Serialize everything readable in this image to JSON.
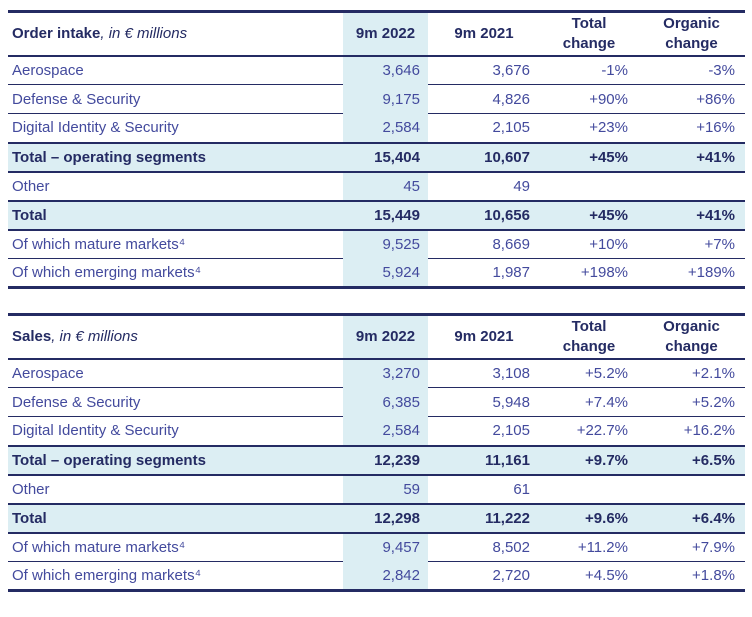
{
  "colors": {
    "navy": "#242b63",
    "text": "#434a9d",
    "highlight": "#dceef3",
    "page_bg": "#ffffff"
  },
  "tables": [
    {
      "title_bold": "Order intake",
      "title_qualifier": ", in € millions",
      "columns": [
        "9m 2022",
        "9m 2021",
        "Total\nchange",
        "Organic\nchange"
      ],
      "rows": [
        {
          "label": "Aerospace",
          "values": [
            "3,646",
            "3,676",
            "-1%",
            "-3%"
          ]
        },
        {
          "label": "Defense & Security",
          "values": [
            "9,175",
            "4,826",
            "+90%",
            "+86%"
          ]
        },
        {
          "label": "Digital Identity & Security",
          "values": [
            "2,584",
            "2,105",
            "+23%",
            "+16%"
          ]
        },
        {
          "label": "Total – operating segments",
          "values": [
            "15,404",
            "10,607",
            "+45%",
            "+41%"
          ]
        },
        {
          "label": "Other",
          "values": [
            "45",
            "49",
            "",
            ""
          ]
        },
        {
          "label": "Total",
          "values": [
            "15,449",
            "10,656",
            "+45%",
            "+41%"
          ]
        },
        {
          "label": "Of which mature markets⁴",
          "values": [
            "9,525",
            "8,669",
            "+10%",
            "+7%"
          ]
        },
        {
          "label": "Of which emerging markets⁴",
          "values": [
            "5,924",
            "1,987",
            "+198%",
            "+189%"
          ]
        }
      ]
    },
    {
      "title_bold": "Sales",
      "title_qualifier": ", in € millions",
      "columns": [
        "9m 2022",
        "9m 2021",
        "Total\nchange",
        "Organic\nchange"
      ],
      "rows": [
        {
          "label": "Aerospace",
          "values": [
            "3,270",
            "3,108",
            "+5.2%",
            "+2.1%"
          ]
        },
        {
          "label": "Defense & Security",
          "values": [
            "6,385",
            "5,948",
            "+7.4%",
            "+5.2%"
          ]
        },
        {
          "label": "Digital Identity & Security",
          "values": [
            "2,584",
            "2,105",
            "+22.7%",
            "+16.2%"
          ]
        },
        {
          "label": "Total – operating segments",
          "values": [
            "12,239",
            "11,161",
            "+9.7%",
            "+6.5%"
          ]
        },
        {
          "label": "Other",
          "values": [
            "59",
            "61",
            "",
            ""
          ]
        },
        {
          "label": "Total",
          "values": [
            "12,298",
            "11,222",
            "+9.6%",
            "+6.4%"
          ]
        },
        {
          "label": "Of which mature markets⁴",
          "values": [
            "9,457",
            "8,502",
            "+11.2%",
            "+7.9%"
          ]
        },
        {
          "label": "Of which emerging markets⁴",
          "values": [
            "2,842",
            "2,720",
            "+4.5%",
            "+1.8%"
          ]
        }
      ]
    }
  ]
}
